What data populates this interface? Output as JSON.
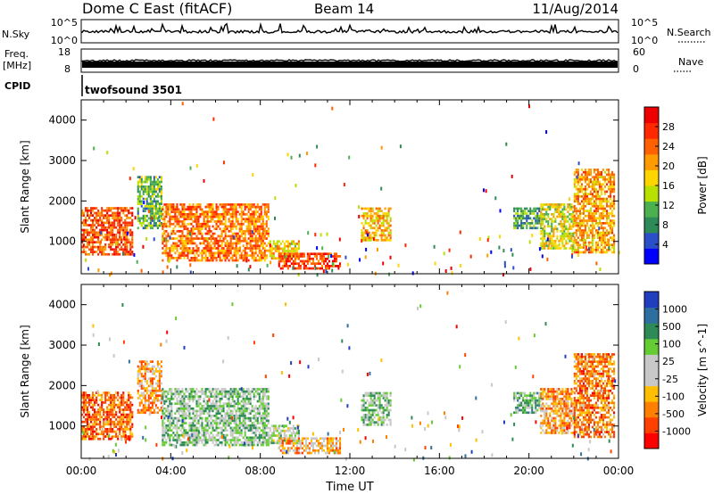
{
  "header": {
    "title": "Dome C East (fitACF)",
    "beam": "Beam 14",
    "date": "11/Aug/2014"
  },
  "summary_panels": {
    "nsky_label": "N.Sky",
    "nsky_ticks": [
      "10^5",
      "10^0"
    ],
    "nsearch_label": "N.Search",
    "nsearch_ticks": [
      "10^5",
      "10^0"
    ],
    "freq_label": "Freq.",
    "freq_unit": "[MHz]",
    "freq_ticks": [
      "18",
      "8"
    ],
    "nave_label": "Nave",
    "nave_ticks": [
      "60",
      "0"
    ],
    "cpid_label": "CPID",
    "cpid_text": "twofsound 3501"
  },
  "colors": {
    "power_scale": [
      "#0000ff",
      "#2a4fc9",
      "#2e8b57",
      "#4caf50",
      "#b8e000",
      "#ffd500",
      "#ff9a00",
      "#ff6000",
      "#ff2800",
      "#ee0000"
    ],
    "velocity_scale": [
      "#ff0000",
      "#ff4000",
      "#ff7f00",
      "#ffbf00",
      "#c8c8c8",
      "#c8c8c8",
      "#66cc33",
      "#2e8b57",
      "#2f6f9f",
      "#1f3fbf"
    ]
  },
  "chart_data": [
    {
      "type": "heatmap",
      "name": "power",
      "ylabel": "Slant Range [km]",
      "yticks": [
        "1000",
        "2000",
        "3000",
        "4000"
      ],
      "ylim": [
        200,
        4500
      ],
      "xlim": [
        0,
        24
      ],
      "colorbar": {
        "label": "Power [dB]",
        "ticks": [
          "4",
          "8",
          "12",
          "16",
          "20",
          "24",
          "28"
        ],
        "range": [
          0,
          32
        ]
      },
      "regions": [
        {
          "t0": 0.0,
          "t1": 2.3,
          "r0": 650,
          "r1": 1800,
          "level": 0.78
        },
        {
          "t0": 2.5,
          "t1": 3.6,
          "r0": 1300,
          "r1": 2600,
          "level": 0.35
        },
        {
          "t0": 3.6,
          "t1": 8.4,
          "r0": 500,
          "r1": 1900,
          "level": 0.72
        },
        {
          "t0": 8.4,
          "t1": 9.7,
          "r0": 550,
          "r1": 1000,
          "level": 0.55
        },
        {
          "t0": 8.8,
          "t1": 11.6,
          "r0": 300,
          "r1": 700,
          "level": 0.82
        },
        {
          "t0": 12.5,
          "t1": 13.8,
          "r0": 1000,
          "r1": 1800,
          "level": 0.6
        },
        {
          "t0": 19.3,
          "t1": 20.5,
          "r0": 1300,
          "r1": 1800,
          "level": 0.3
        },
        {
          "t0": 20.5,
          "t1": 22.0,
          "r0": 800,
          "r1": 1900,
          "level": 0.5
        },
        {
          "t0": 22.0,
          "t1": 23.8,
          "r0": 700,
          "r1": 2800,
          "level": 0.65
        }
      ]
    },
    {
      "type": "heatmap",
      "name": "velocity",
      "ylabel": "Slant Range [km]",
      "yticks": [
        "1000",
        "2000",
        "3000",
        "4000"
      ],
      "ylim": [
        200,
        4500
      ],
      "xlim": [
        0,
        24
      ],
      "xlabel": "Time UT",
      "xticks": [
        "00:00",
        "04:00",
        "08:00",
        "12:00",
        "16:00",
        "20:00",
        "00:00"
      ],
      "colorbar": {
        "label": "Velocity [m s^-1]",
        "ticks": [
          "-1000",
          "-500",
          "-100",
          "-25",
          "25",
          "100",
          "500",
          "1000"
        ],
        "range": [
          -1200,
          1200
        ]
      },
      "regions": [
        {
          "t0": 0.0,
          "t1": 2.3,
          "r0": 650,
          "r1": 1800,
          "level": 0.2
        },
        {
          "t0": 2.5,
          "t1": 3.6,
          "r0": 1300,
          "r1": 2600,
          "level": 0.3
        },
        {
          "t0": 3.6,
          "t1": 8.4,
          "r0": 500,
          "r1": 1900,
          "level": 0.62
        },
        {
          "t0": 8.4,
          "t1": 9.7,
          "r0": 550,
          "r1": 1000,
          "level": 0.55
        },
        {
          "t0": 8.8,
          "t1": 11.6,
          "r0": 300,
          "r1": 700,
          "level": 0.35
        },
        {
          "t0": 12.5,
          "t1": 13.8,
          "r0": 1000,
          "r1": 1800,
          "level": 0.6
        },
        {
          "t0": 19.3,
          "t1": 20.5,
          "r0": 1300,
          "r1": 1800,
          "level": 0.65
        },
        {
          "t0": 20.5,
          "t1": 22.0,
          "r0": 800,
          "r1": 1900,
          "level": 0.3
        },
        {
          "t0": 22.0,
          "t1": 23.8,
          "r0": 700,
          "r1": 2800,
          "level": 0.25
        }
      ]
    }
  ]
}
